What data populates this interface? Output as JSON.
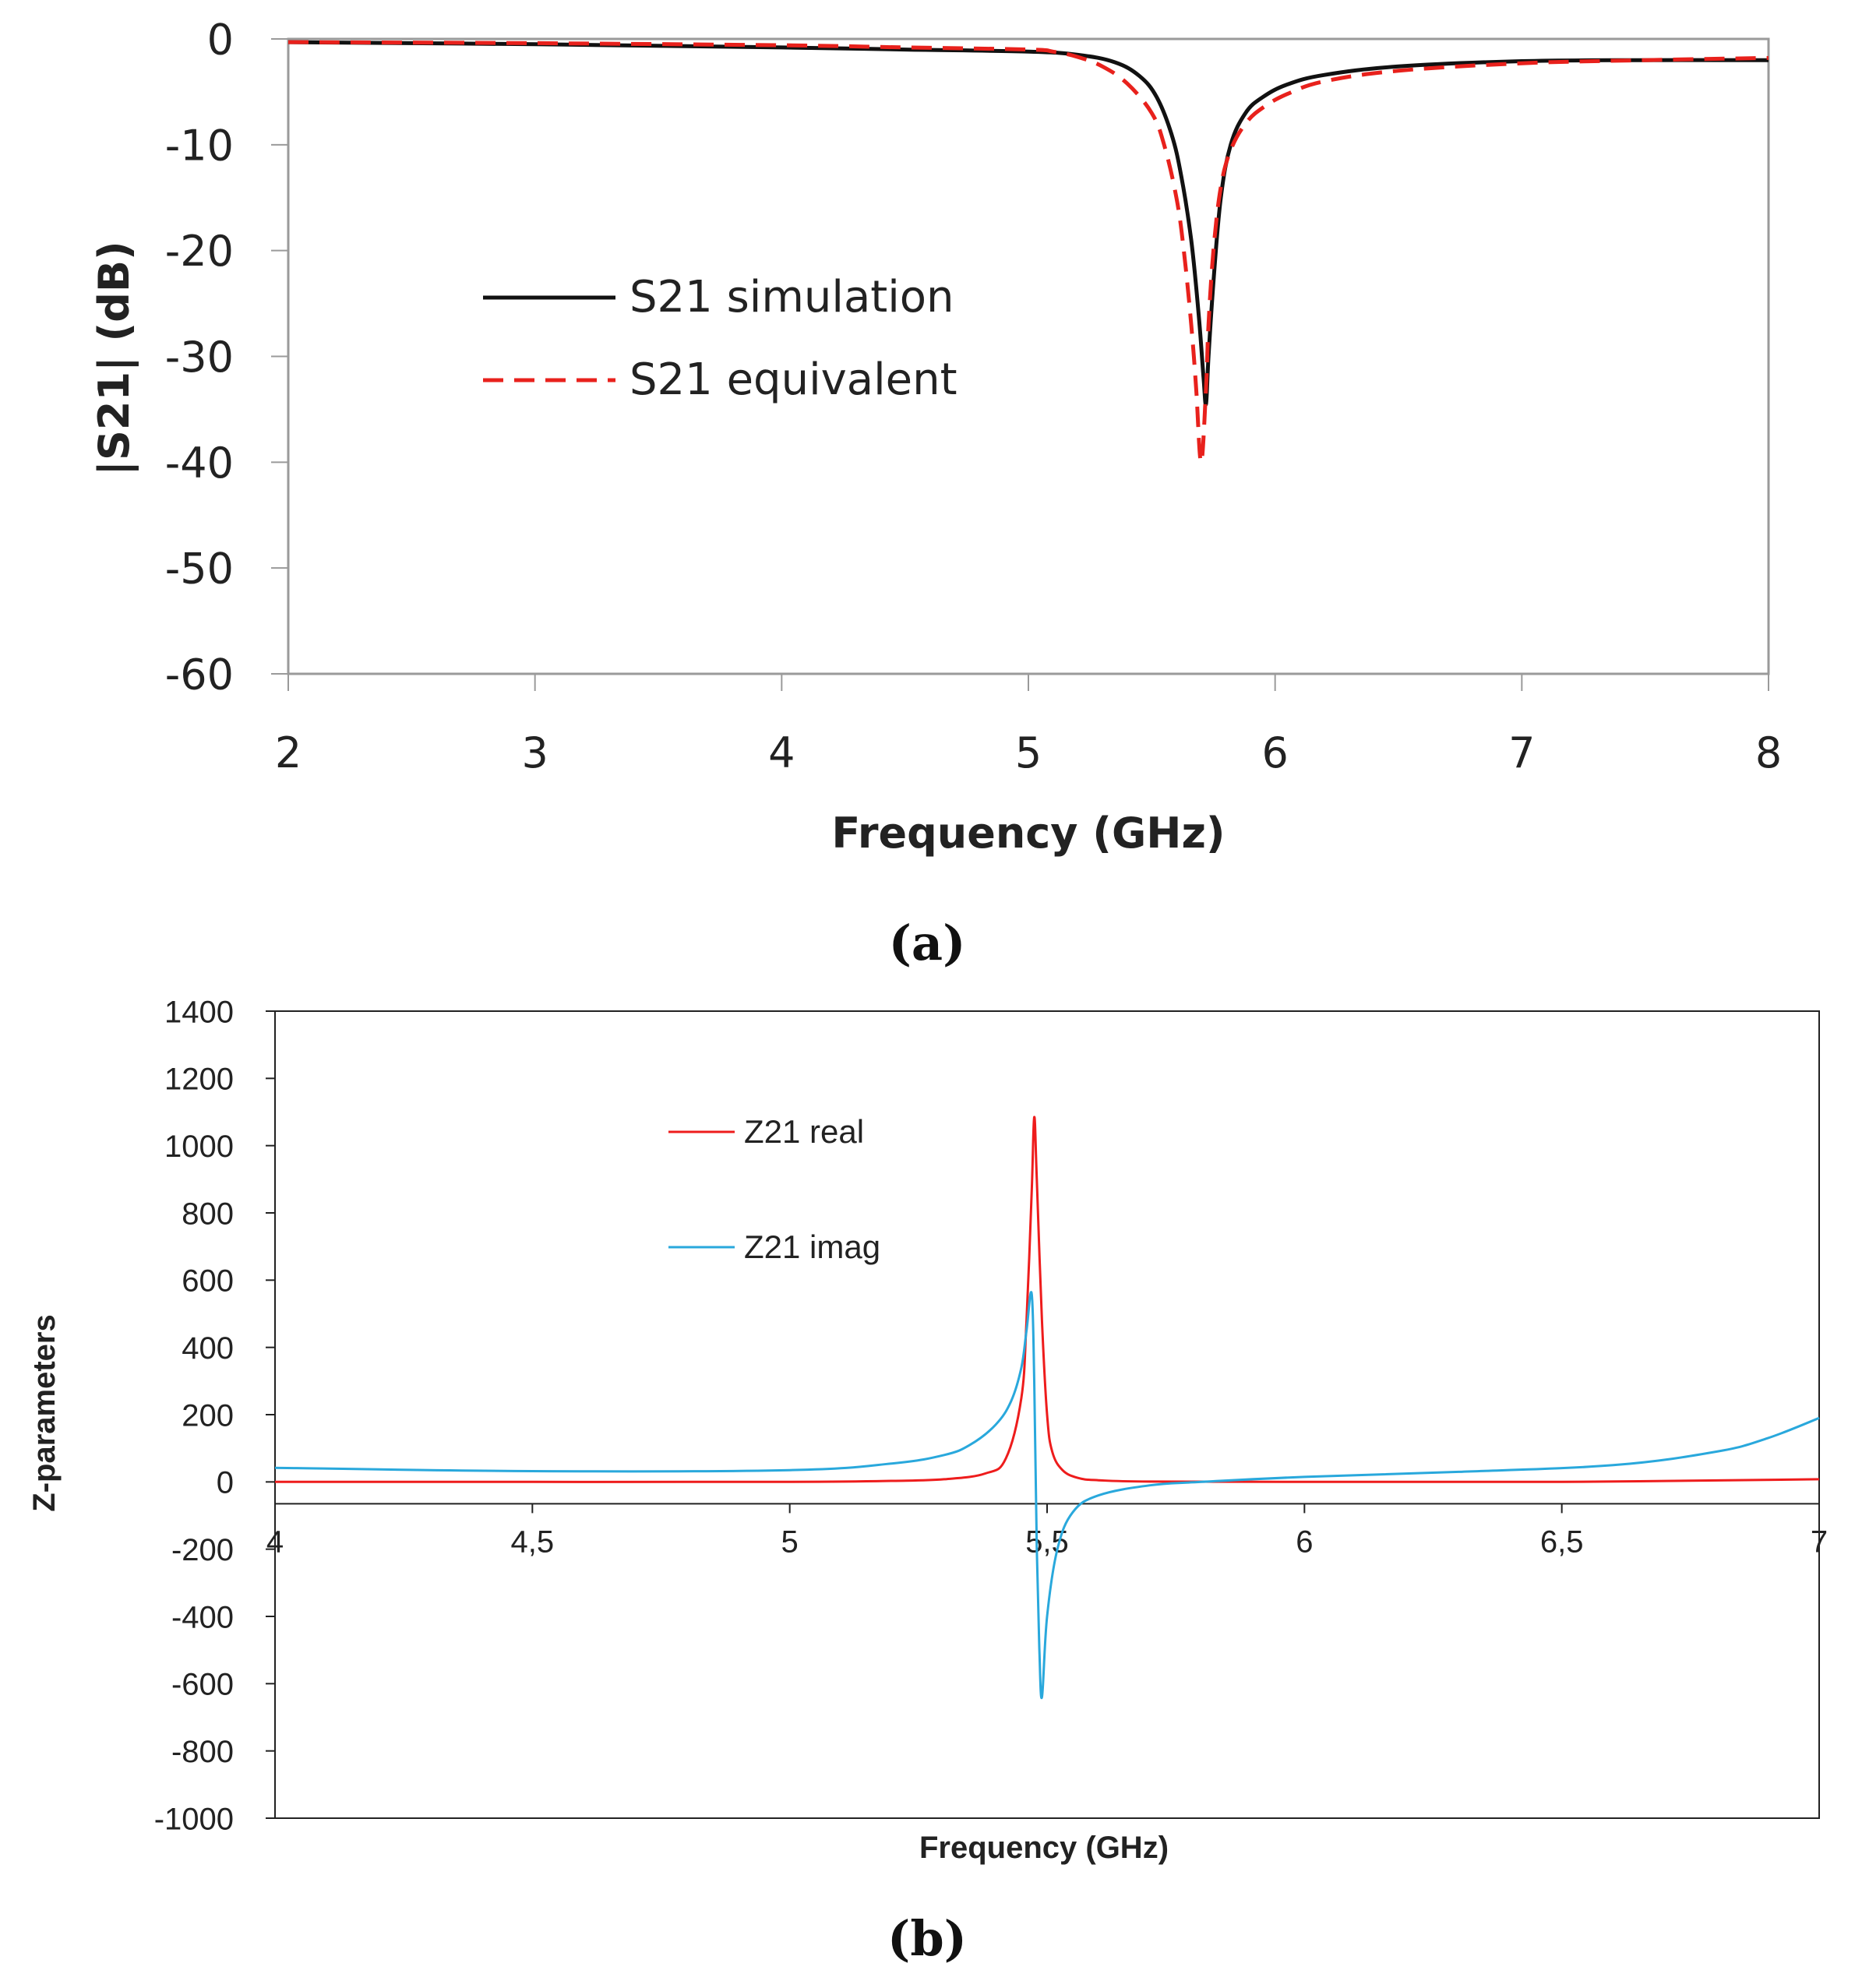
{
  "chart_data": [
    {
      "id": "a",
      "type": "line",
      "xlabel": "Frequency (GHz)",
      "ylabel": "|S21| (dB)",
      "xlim": [
        2,
        8
      ],
      "ylim": [
        -60,
        0
      ],
      "xticks": [
        2,
        3,
        4,
        5,
        6,
        7,
        8
      ],
      "yticks": [
        0,
        -10,
        -20,
        -30,
        -40,
        -50,
        -60
      ],
      "xtick_labels": [
        "2",
        "3",
        "4",
        "5",
        "6",
        "7",
        "8"
      ],
      "ytick_labels": [
        "0",
        "-10",
        "-20",
        "-30",
        "-40",
        "-50",
        "-60"
      ],
      "legend_position": "center-left",
      "caption": "(a)",
      "series": [
        {
          "name": "S21 simulation",
          "color": "#111111",
          "dash": "solid",
          "x": [
            2,
            3,
            4,
            4.5,
            5,
            5.2,
            5.35,
            5.45,
            5.52,
            5.58,
            5.62,
            5.66,
            5.69,
            5.71,
            5.72,
            5.73,
            5.75,
            5.78,
            5.82,
            5.88,
            5.95,
            6.05,
            6.2,
            6.5,
            7,
            7.5,
            8
          ],
          "y": [
            -0.3,
            -0.5,
            -0.8,
            -1.0,
            -1.2,
            -1.5,
            -2.2,
            -3.5,
            -5.5,
            -9,
            -13,
            -19,
            -26,
            -32,
            -34.5,
            -30,
            -23,
            -15,
            -10,
            -7,
            -5.5,
            -4.3,
            -3.4,
            -2.6,
            -2.1,
            -2.0,
            -2.0
          ]
        },
        {
          "name": "S21 equivalent",
          "color": "#e8211c",
          "dash": "dashed",
          "x": [
            2,
            3,
            4,
            4.5,
            5,
            5.1,
            5.2,
            5.3,
            5.4,
            5.5,
            5.55,
            5.6,
            5.63,
            5.66,
            5.68,
            5.7,
            5.72,
            5.73,
            5.75,
            5.78,
            5.82,
            5.88,
            5.95,
            6.05,
            6.2,
            6.5,
            7,
            7.5,
            8
          ],
          "y": [
            -0.3,
            -0.4,
            -0.6,
            -0.8,
            -1.0,
            -1.2,
            -1.7,
            -2.6,
            -4.2,
            -7,
            -10,
            -15,
            -20,
            -27,
            -33,
            -40,
            -33,
            -27,
            -20,
            -14,
            -10.5,
            -8,
            -6.5,
            -5.2,
            -4.0,
            -3.0,
            -2.3,
            -2.0,
            -1.8
          ]
        }
      ]
    },
    {
      "id": "b",
      "type": "line",
      "xlabel": "Frequency (GHz)",
      "ylabel": "Z-parameters",
      "xlim": [
        4,
        7
      ],
      "ylim": [
        -1000,
        1400
      ],
      "xticks": [
        4,
        4.5,
        5,
        5.5,
        6,
        6.5,
        7
      ],
      "yticks": [
        1400,
        1200,
        1000,
        800,
        600,
        400,
        200,
        0,
        -200,
        -400,
        -600,
        -800,
        -1000
      ],
      "xtick_labels": [
        "4",
        "4,5",
        "5",
        "5,5",
        "6",
        "6,5",
        "7"
      ],
      "ytick_labels": [
        "1400",
        "1200",
        "1000",
        "800",
        "600",
        "400",
        "200",
        "0",
        "-200",
        "-400",
        "-600",
        "-800",
        "-1000"
      ],
      "x_axis_crosses_at": -65,
      "legend_position": "top-center",
      "caption": "(b)",
      "series": [
        {
          "name": "Z21 real",
          "color": "#ee1c1c",
          "x": [
            4,
            4.5,
            5,
            5.2,
            5.3,
            5.38,
            5.42,
            5.45,
            5.46,
            5.47,
            5.475,
            5.48,
            5.49,
            5.5,
            5.51,
            5.53,
            5.56,
            5.6,
            5.7,
            6,
            6.5,
            7
          ],
          "y": [
            0,
            0,
            0,
            3,
            8,
            25,
            70,
            250,
            480,
            860,
            1085,
            900,
            480,
            200,
            90,
            35,
            12,
            5,
            1,
            0,
            0,
            8
          ]
        },
        {
          "name": "Z21 imag",
          "color": "#29a8dc",
          "x": [
            4,
            4.5,
            5,
            5.2,
            5.3,
            5.35,
            5.4,
            5.43,
            5.45,
            5.46,
            5.47,
            5.475,
            5.48,
            5.485,
            5.49,
            5.5,
            5.52,
            5.55,
            5.6,
            5.7,
            5.8,
            6,
            6.3,
            6.6,
            6.8,
            6.9,
            7
          ],
          "y": [
            42,
            32,
            35,
            55,
            80,
            110,
            170,
            240,
            340,
            450,
            560,
            300,
            -200,
            -500,
            -640,
            -400,
            -200,
            -90,
            -40,
            -10,
            0,
            15,
            30,
            50,
            90,
            130,
            190
          ]
        }
      ]
    }
  ]
}
